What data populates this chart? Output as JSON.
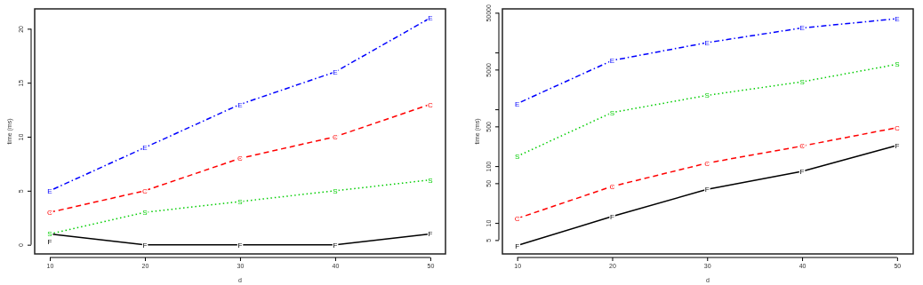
{
  "chart_data": [
    {
      "type": "line",
      "xlabel": "d",
      "ylabel": "time (ms)",
      "x": [
        10,
        20,
        30,
        40,
        50
      ],
      "xlim": [
        8.41,
        51.6
      ],
      "xticks": [
        10,
        20,
        30,
        40,
        50
      ],
      "ylim": [
        -0.85,
        21.84
      ],
      "yticks": [
        0,
        5,
        10,
        15,
        20
      ],
      "series": [
        {
          "name": "E",
          "color": "#0000ff",
          "line_style": "dashdot",
          "values": [
            5,
            9,
            13,
            16,
            21
          ]
        },
        {
          "name": "C",
          "color": "#ff0000",
          "line_style": "dashed",
          "values": [
            3,
            5,
            8,
            10,
            13
          ]
        },
        {
          "name": "S",
          "color": "#00cd00",
          "line_style": "dotted",
          "values": [
            1,
            3,
            4,
            5,
            6
          ]
        },
        {
          "name": "F",
          "color": "#000000",
          "line_style": "solid",
          "values": [
            1,
            0,
            0,
            0,
            1
          ]
        }
      ]
    },
    {
      "type": "line",
      "xlabel": "d",
      "ylabel": "time (ms)",
      "log": "y",
      "x": [
        10,
        20,
        30,
        40,
        50
      ],
      "xlim": [
        8.44,
        51.7
      ],
      "xticks": [
        10,
        20,
        30,
        40,
        50
      ],
      "ylim": [
        2.85,
        58500
      ],
      "yticks": [
        5,
        10,
        50,
        100,
        500,
        {
          "value": 1000,
          "label": null
        },
        5000,
        {
          "value": 10000,
          "label": null
        },
        50000
      ],
      "series": [
        {
          "name": "E",
          "color": "#0000ff",
          "line_style": "dashdot",
          "values": [
            1260,
            7230,
            14900,
            27000,
            39300
          ]
        },
        {
          "name": "C",
          "color": "#ff0000",
          "line_style": "dashed",
          "values": [
            12,
            44,
            113,
            226,
            475
          ]
        },
        {
          "name": "S",
          "color": "#00cd00",
          "line_style": "dotted",
          "values": [
            149,
            877,
            1760,
            3050,
            6190
          ]
        },
        {
          "name": "F",
          "color": "#000000",
          "line_style": "solid",
          "values": [
            4,
            13,
            39,
            81,
            232
          ]
        }
      ]
    }
  ]
}
